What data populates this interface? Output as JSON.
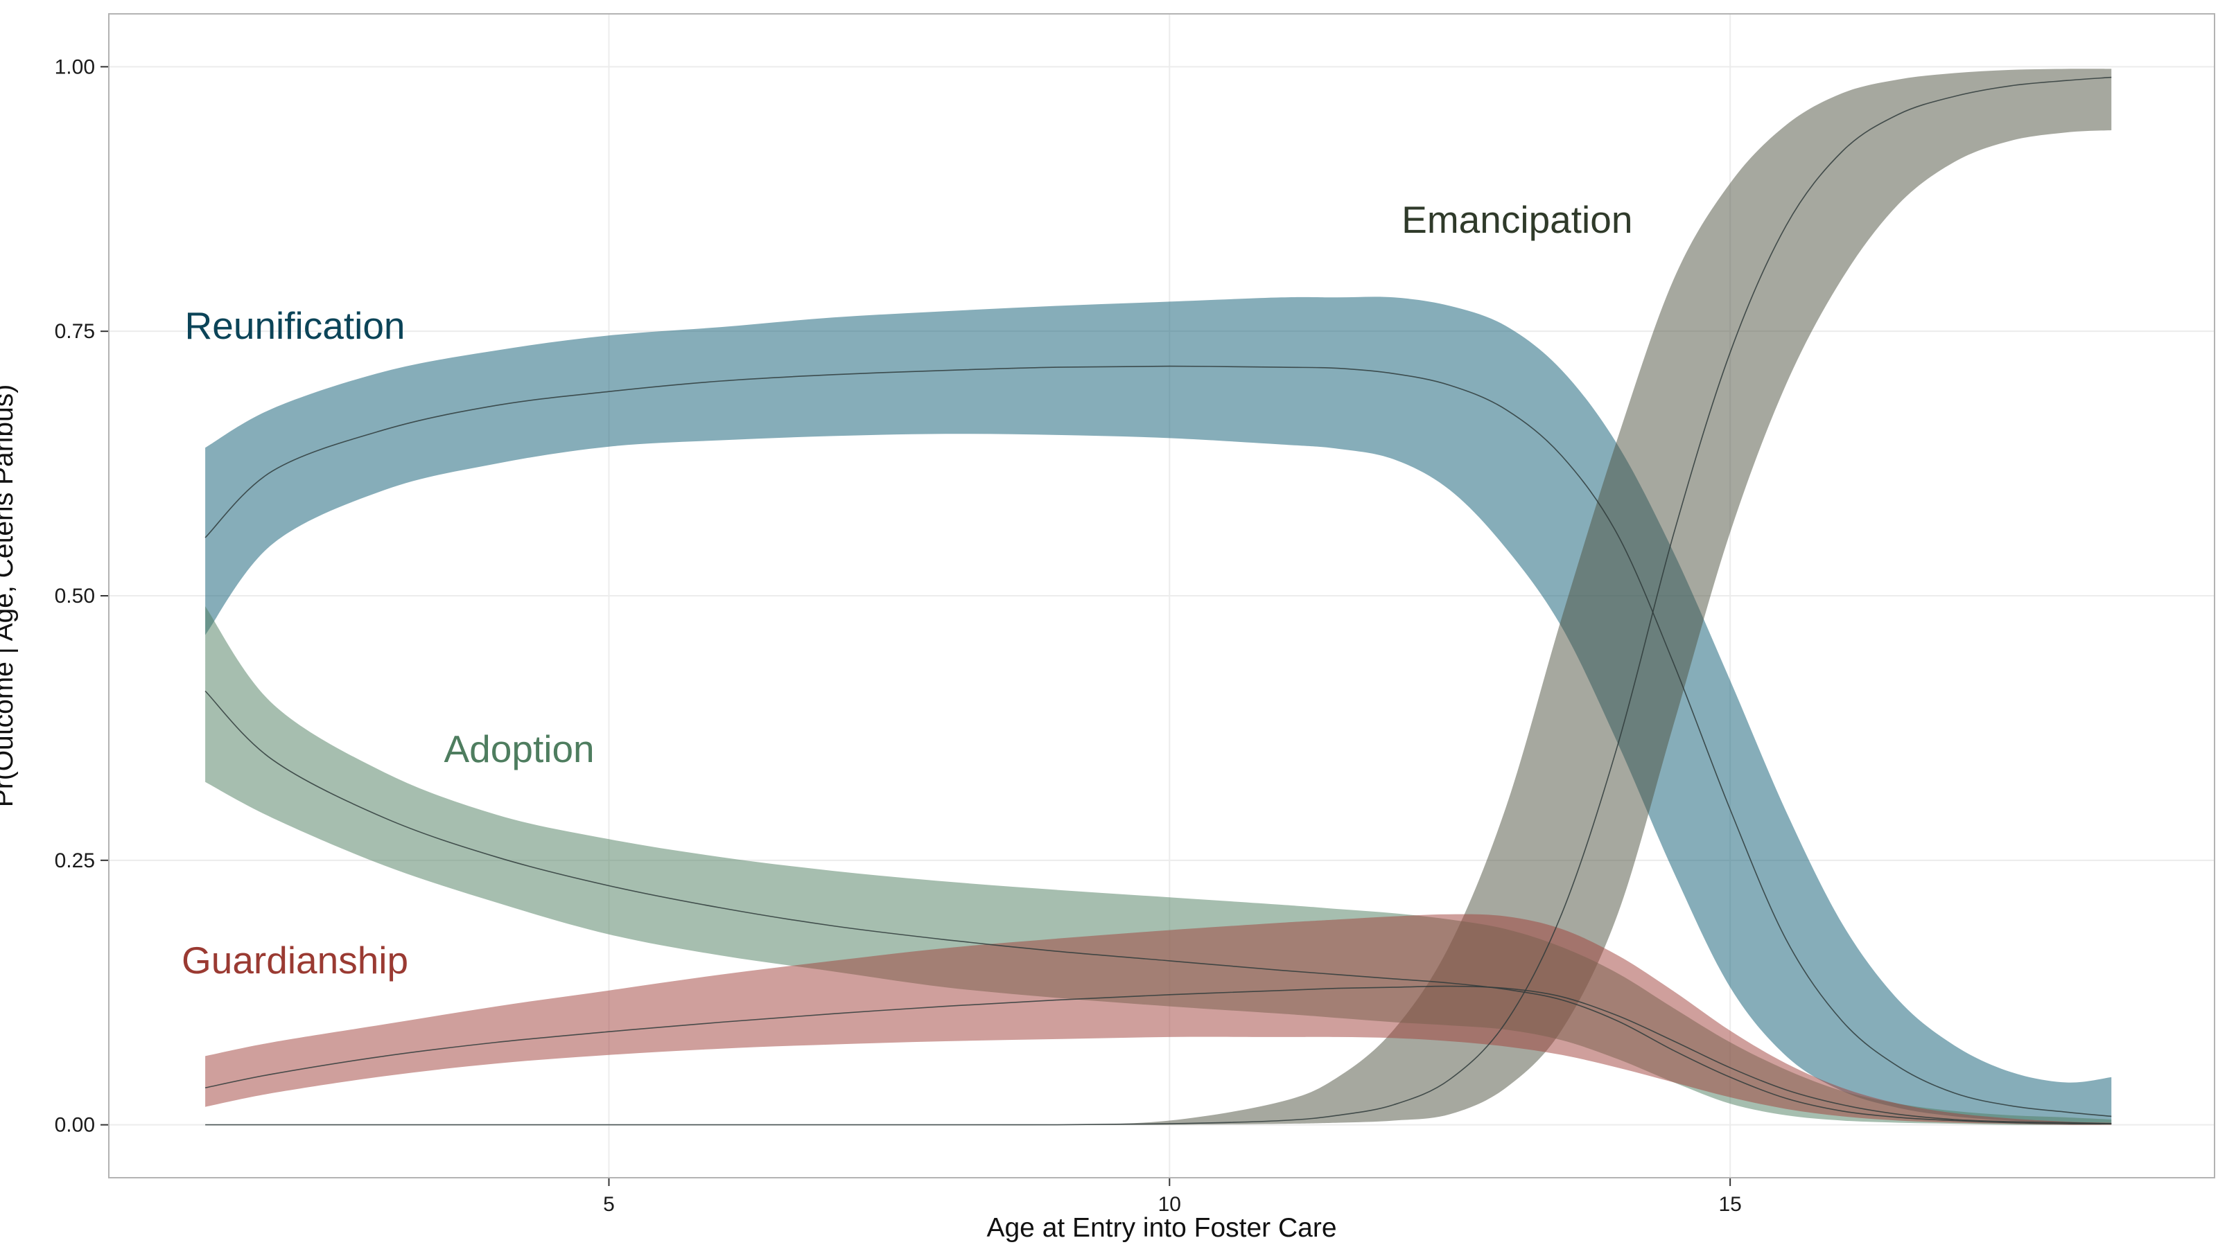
{
  "chart_data": {
    "type": "area",
    "title": "",
    "xlabel": "Age at Entry into Foster Care",
    "ylabel": "Pr(Outcome | Age, Ceteris Paribus)",
    "xlim": [
      0.54,
      19.32
    ],
    "ylim": [
      -0.05,
      1.05
    ],
    "x_ticks": [
      5,
      10,
      15
    ],
    "y_ticks": [
      0.0,
      0.25,
      0.5,
      0.75,
      1.0
    ],
    "y_tick_labels": [
      "0.00",
      "0.25",
      "0.50",
      "0.75",
      "1.00"
    ],
    "grid": true,
    "legend": "none (series labeled directly on plot)",
    "x": [
      1.4,
      2,
      3,
      4,
      5,
      6,
      7,
      8,
      9,
      10,
      11,
      11.5,
      12,
      12.5,
      13,
      13.5,
      14,
      14.5,
      15,
      15.5,
      16,
      16.5,
      17,
      17.5,
      18,
      18.4
    ],
    "series": [
      {
        "name": "Reunification",
        "color": "#0e5c73",
        "label_color": "#0b4458",
        "mean": [
          0.555,
          0.618,
          0.657,
          0.68,
          0.693,
          0.703,
          0.709,
          0.713,
          0.716,
          0.717,
          0.716,
          0.715,
          0.71,
          0.699,
          0.676,
          0.632,
          0.557,
          0.435,
          0.298,
          0.175,
          0.098,
          0.055,
          0.03,
          0.018,
          0.012,
          0.008
        ],
        "lower": [
          0.463,
          0.549,
          0.6,
          0.625,
          0.641,
          0.647,
          0.651,
          0.653,
          0.652,
          0.649,
          0.643,
          0.639,
          0.629,
          0.6,
          0.545,
          0.47,
          0.36,
          0.238,
          0.13,
          0.065,
          0.032,
          0.016,
          0.008,
          0.004,
          0.002,
          0.001
        ],
        "upper": [
          0.64,
          0.677,
          0.712,
          0.732,
          0.746,
          0.754,
          0.763,
          0.769,
          0.774,
          0.778,
          0.782,
          0.782,
          0.782,
          0.774,
          0.755,
          0.713,
          0.642,
          0.54,
          0.42,
          0.296,
          0.19,
          0.118,
          0.075,
          0.05,
          0.04,
          0.045
        ]
      },
      {
        "name": "Emancipation",
        "color": "#4d5240",
        "label_color": "#2f3a2a",
        "mean": [
          0,
          0,
          0,
          0,
          0,
          0,
          0,
          0,
          0,
          0.001,
          0.004,
          0.009,
          0.019,
          0.043,
          0.097,
          0.2,
          0.36,
          0.56,
          0.73,
          0.85,
          0.92,
          0.955,
          0.972,
          0.982,
          0.987,
          0.99
        ],
        "lower": [
          0,
          0,
          0,
          0,
          0,
          0,
          0,
          0,
          0,
          0,
          0.001,
          0.002,
          0.004,
          0.01,
          0.035,
          0.09,
          0.2,
          0.38,
          0.56,
          0.7,
          0.8,
          0.87,
          0.91,
          0.93,
          0.938,
          0.94
        ],
        "upper": [
          0,
          0,
          0,
          0,
          0,
          0,
          0,
          0,
          0,
          0.004,
          0.022,
          0.045,
          0.09,
          0.17,
          0.3,
          0.48,
          0.65,
          0.8,
          0.89,
          0.945,
          0.975,
          0.988,
          0.994,
          0.997,
          0.998,
          0.998
        ]
      },
      {
        "name": "Adoption",
        "color": "#4e7d5f",
        "label_color": "#4e7d5f",
        "mean": [
          0.41,
          0.345,
          0.29,
          0.253,
          0.226,
          0.205,
          0.188,
          0.175,
          0.164,
          0.155,
          0.146,
          0.142,
          0.138,
          0.134,
          0.128,
          0.118,
          0.098,
          0.07,
          0.045,
          0.025,
          0.013,
          0.007,
          0.004,
          0.002,
          0.001,
          0.001
        ],
        "lower": [
          0.324,
          0.29,
          0.245,
          0.21,
          0.18,
          0.16,
          0.145,
          0.13,
          0.12,
          0.112,
          0.105,
          0.101,
          0.097,
          0.094,
          0.09,
          0.08,
          0.062,
          0.04,
          0.02,
          0.009,
          0.004,
          0.002,
          0.001,
          0,
          0,
          0
        ],
        "upper": [
          0.49,
          0.398,
          0.333,
          0.293,
          0.27,
          0.253,
          0.24,
          0.23,
          0.222,
          0.215,
          0.208,
          0.204,
          0.2,
          0.194,
          0.185,
          0.168,
          0.143,
          0.11,
          0.078,
          0.052,
          0.032,
          0.02,
          0.013,
          0.009,
          0.007,
          0.005
        ]
      },
      {
        "name": "Guardianship",
        "color": "#a0403a",
        "label_color": "#9a3a32",
        "mean": [
          0.035,
          0.048,
          0.065,
          0.078,
          0.088,
          0.097,
          0.105,
          0.112,
          0.118,
          0.123,
          0.127,
          0.129,
          0.13,
          0.131,
          0.129,
          0.121,
          0.103,
          0.079,
          0.054,
          0.033,
          0.019,
          0.01,
          0.005,
          0.003,
          0.002,
          0.001
        ],
        "lower": [
          0.017,
          0.03,
          0.046,
          0.058,
          0.066,
          0.072,
          0.076,
          0.079,
          0.081,
          0.083,
          0.083,
          0.083,
          0.082,
          0.079,
          0.074,
          0.066,
          0.054,
          0.04,
          0.026,
          0.015,
          0.008,
          0.004,
          0.002,
          0.001,
          0,
          0
        ],
        "upper": [
          0.065,
          0.078,
          0.095,
          0.112,
          0.127,
          0.142,
          0.155,
          0.167,
          0.176,
          0.184,
          0.191,
          0.194,
          0.197,
          0.199,
          0.197,
          0.185,
          0.16,
          0.126,
          0.089,
          0.058,
          0.035,
          0.02,
          0.011,
          0.006,
          0.003,
          0.002
        ]
      }
    ],
    "labels": [
      "Reunification",
      "Emancipation",
      "Adoption",
      "Guardianship"
    ]
  }
}
